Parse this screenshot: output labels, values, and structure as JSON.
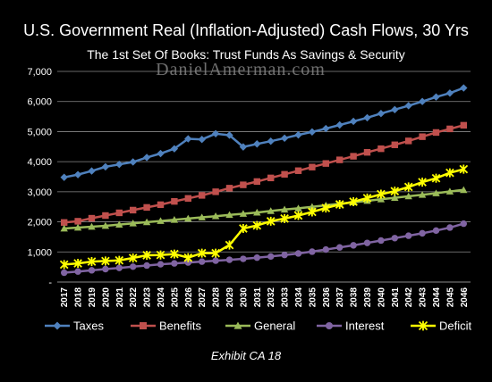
{
  "chart_data": {
    "type": "line",
    "title": "U.S. Government Real (Inflation-Adjusted) Cash Flows, 30 Yrs",
    "subtitle": "The 1st Set Of Books: Trust Funds As Savings & Security",
    "watermark": "DanielAmerman.com",
    "caption": "Exhibit CA 18",
    "xlabel": "",
    "ylabel": "",
    "ylim": [
      0,
      7000
    ],
    "yticks": [
      "-",
      "1,000",
      "2,000",
      "3,000",
      "4,000",
      "5,000",
      "6,000",
      "7,000"
    ],
    "grid": true,
    "legend_position": "bottom",
    "x": [
      "2017",
      "2018",
      "2019",
      "2020",
      "2021",
      "2022",
      "2023",
      "2024",
      "2025",
      "2026",
      "2027",
      "2028",
      "2029",
      "2030",
      "2031",
      "2032",
      "2033",
      "2034",
      "2035",
      "2036",
      "2037",
      "2038",
      "2039",
      "2040",
      "2041",
      "2042",
      "2043",
      "2044",
      "2045",
      "2046"
    ],
    "series": [
      {
        "name": "Taxes",
        "color": "#4f81bd",
        "marker": "diamond",
        "values": [
          3480,
          3570,
          3690,
          3830,
          3910,
          3990,
          4140,
          4270,
          4430,
          4760,
          4740,
          4930,
          4880,
          4490,
          4590,
          4680,
          4780,
          4890,
          4990,
          5100,
          5220,
          5340,
          5460,
          5600,
          5730,
          5860,
          6000,
          6150,
          6280,
          6450
        ]
      },
      {
        "name": "Benefits",
        "color": "#c0504d",
        "marker": "square",
        "values": [
          1980,
          2020,
          2120,
          2210,
          2300,
          2390,
          2480,
          2570,
          2680,
          2780,
          2880,
          3000,
          3120,
          3230,
          3340,
          3460,
          3580,
          3700,
          3820,
          3940,
          4060,
          4180,
          4310,
          4430,
          4560,
          4690,
          4830,
          4970,
          5090,
          5210
        ]
      },
      {
        "name": "General",
        "color": "#9bbb59",
        "marker": "triangle",
        "values": [
          1780,
          1810,
          1840,
          1870,
          1910,
          1950,
          1990,
          2030,
          2070,
          2110,
          2150,
          2190,
          2230,
          2270,
          2310,
          2360,
          2410,
          2450,
          2500,
          2550,
          2600,
          2650,
          2700,
          2750,
          2800,
          2850,
          2900,
          2950,
          3010,
          3060
        ]
      },
      {
        "name": "Interest",
        "color": "#8064a2",
        "marker": "circle",
        "values": [
          310,
          350,
          390,
          430,
          470,
          510,
          550,
          590,
          620,
          650,
          680,
          710,
          740,
          770,
          810,
          850,
          900,
          950,
          1010,
          1080,
          1150,
          1220,
          1300,
          1380,
          1460,
          1540,
          1620,
          1710,
          1810,
          1940
        ]
      },
      {
        "name": "Deficit",
        "color": "#ffff00",
        "marker": "star",
        "values": [
          580,
          620,
          680,
          700,
          720,
          800,
          890,
          900,
          930,
          810,
          960,
          960,
          1230,
          1780,
          1880,
          2020,
          2110,
          2210,
          2330,
          2460,
          2580,
          2670,
          2790,
          2920,
          3020,
          3160,
          3320,
          3450,
          3630,
          3750
        ]
      }
    ]
  }
}
